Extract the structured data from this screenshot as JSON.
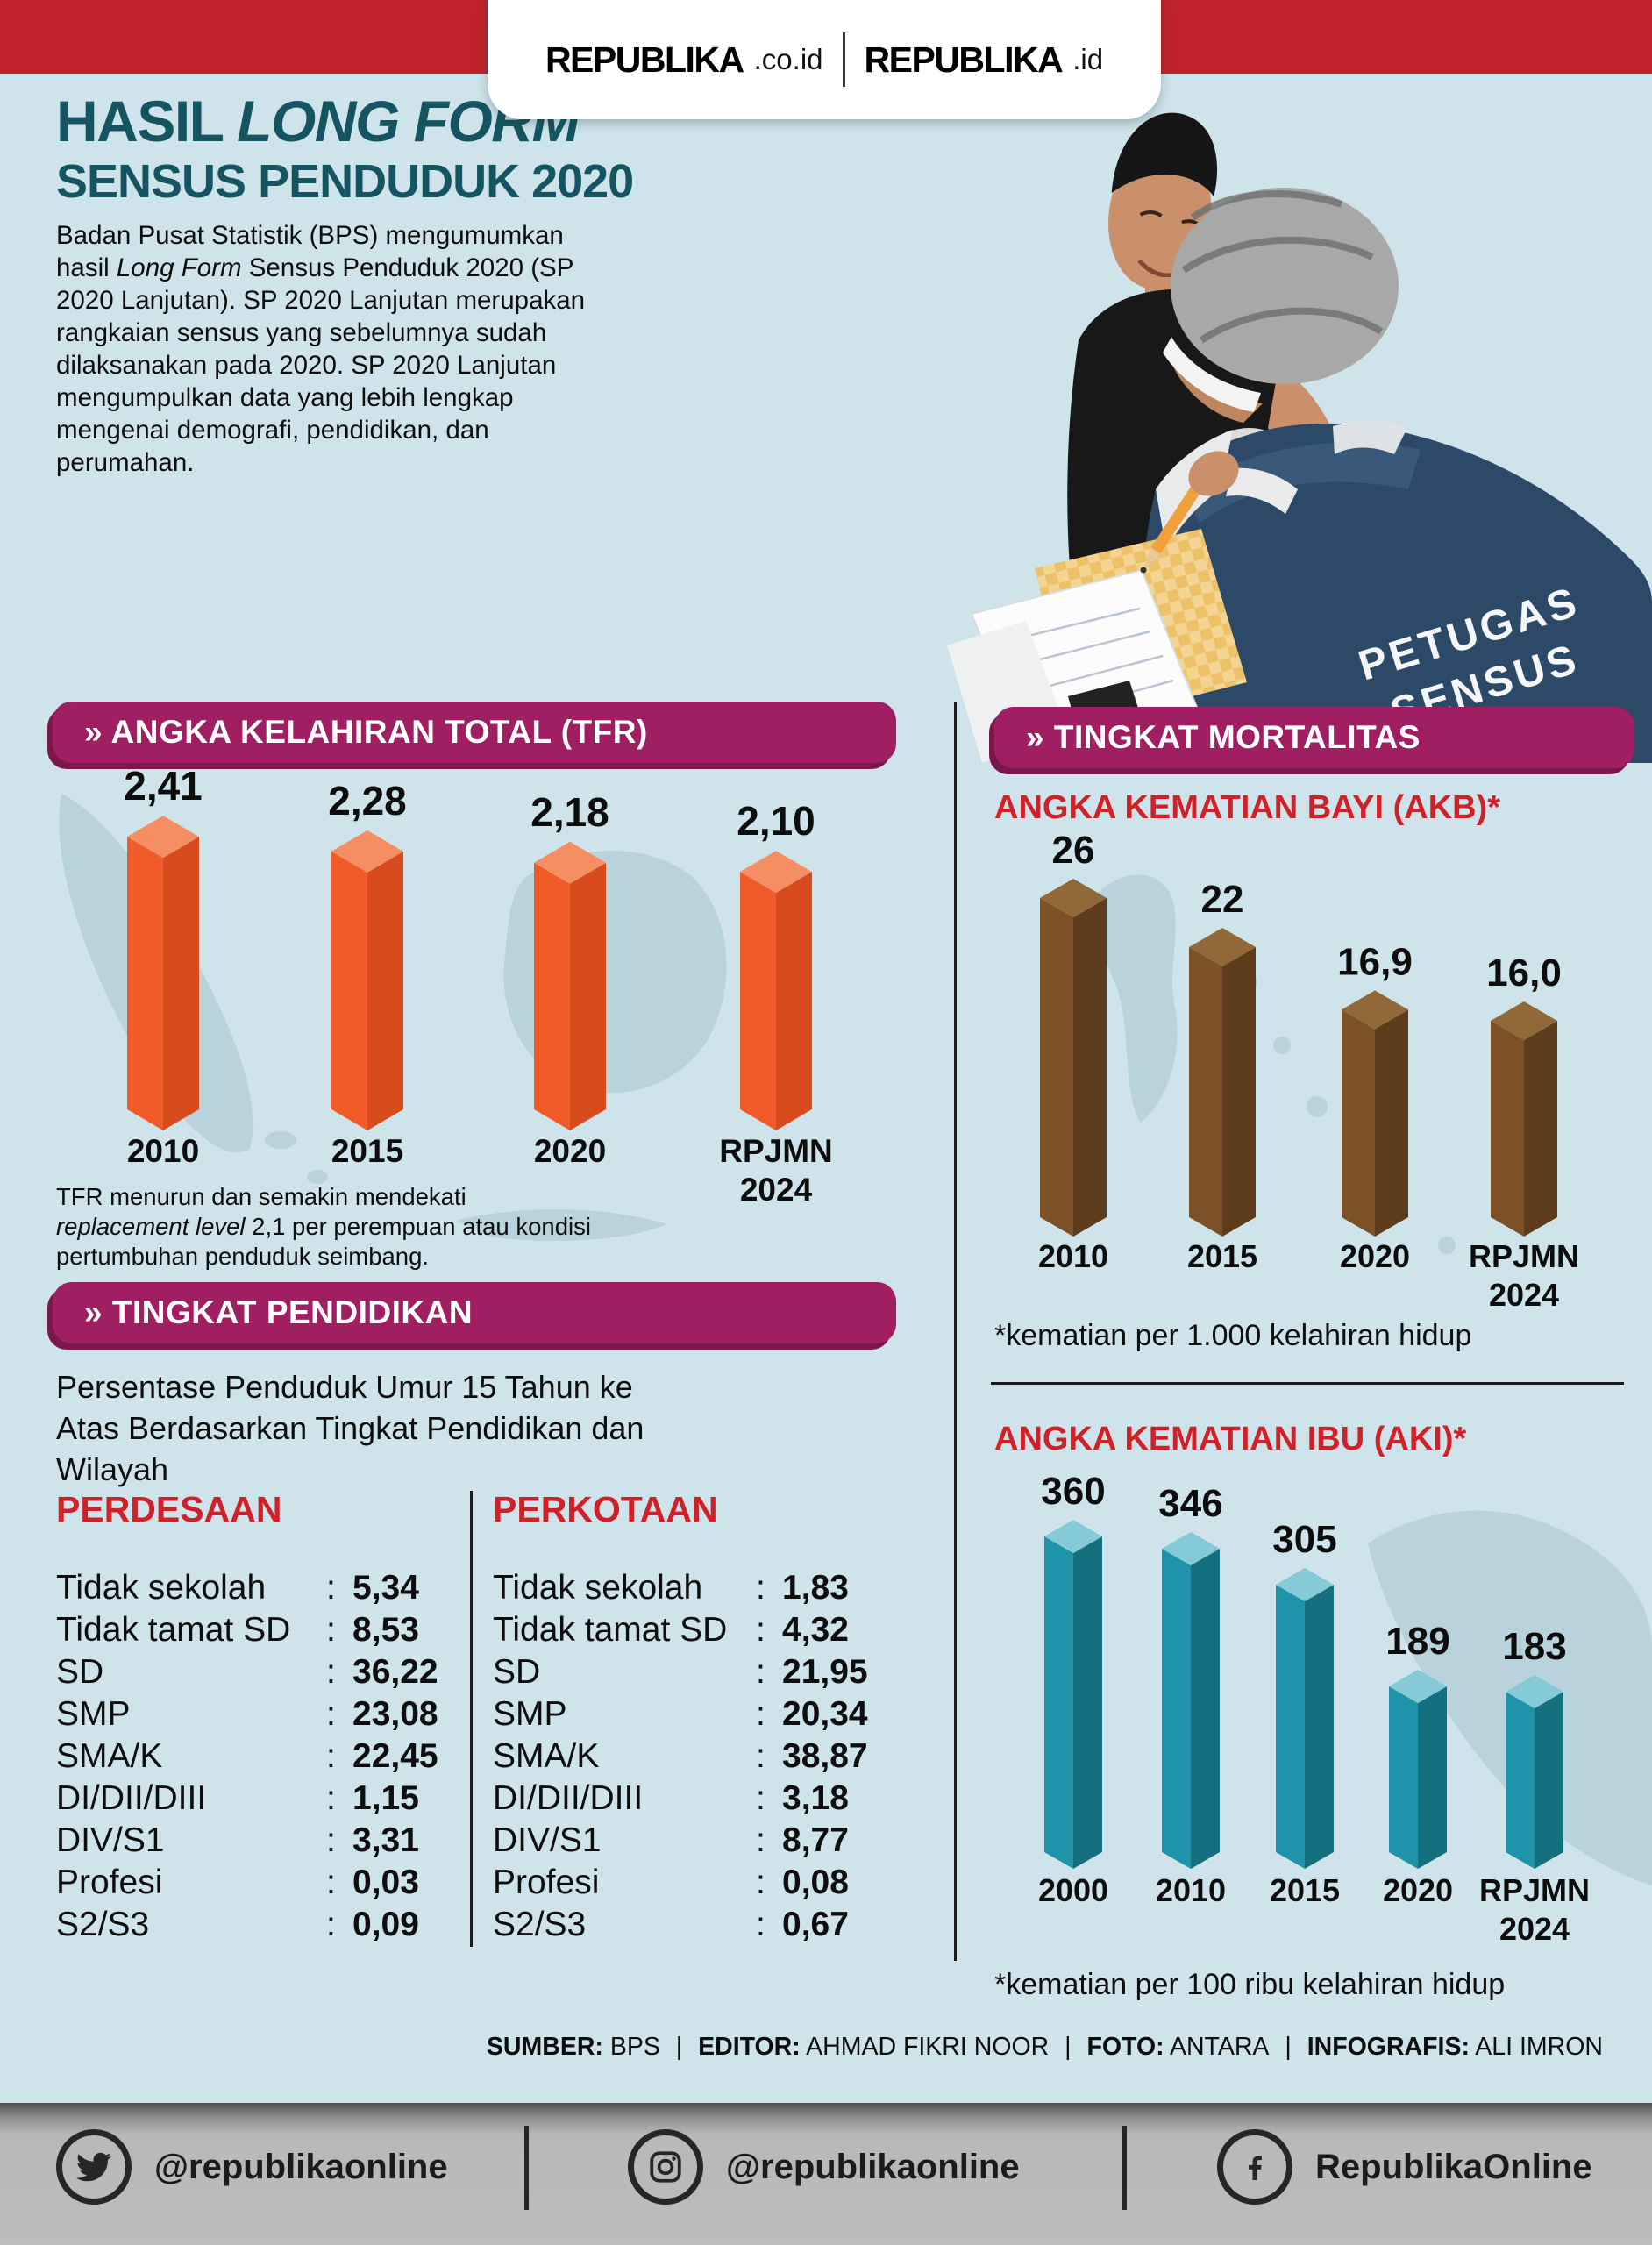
{
  "colors": {
    "background": "#cfe3ea",
    "map_silhouette": "#b8d3db",
    "masthead_bar": "#c0222b",
    "title_teal": "#155561",
    "accent_magenta": "#a01f63",
    "accent_red": "#d02028",
    "footer_gray": "#bcbdbe"
  },
  "masthead": {
    "logo_left": {
      "name": "REPUBLIKA",
      "suffix": ".co.id"
    },
    "logo_right": {
      "name": "REPUBLIKA",
      "suffix": ".id"
    }
  },
  "title": {
    "line1_prefix": "HASIL ",
    "line1_italic": "LONG FORM",
    "line2": "SENSUS PENDUDUK 2020"
  },
  "intro": {
    "seg1": "Badan Pusat Statistik (BPS) mengumumkan hasil ",
    "seg2_italic": "Long Form",
    "seg3": " Sensus Penduduk 2020 (SP 2020 Lanjutan). SP 2020 Lanjutan merupakan rangkaian sensus yang sebelumnya sudah dilaksanakan pada 2020. SP 2020 Lanjutan mengumpulkan data yang lebih lengkap mengenai demografi, pendidikan, dan perumahan."
  },
  "photo": {
    "vest_line1": "PETUGAS",
    "vest_line2": "SENSUS"
  },
  "sections": {
    "tfr_header": "» ANGKA KELAHIRAN TOTAL (TFR)",
    "tfr_note": {
      "seg1": "TFR menurun dan semakin mendekati ",
      "seg2_italic": "replacement level",
      "seg3": " 2,1 per perempuan atau kondisi pertumbuhan penduduk seimbang."
    },
    "mortalitas_header": "» TINGKAT MORTALITAS",
    "akb_title": "ANGKA KEMATIAN BAYI (AKB)*",
    "akb_note": "*kematian per 1.000 kelahiran hidup",
    "aki_title": "ANGKA KEMATIAN IBU (AKI)*",
    "aki_note": "*kematian per 100 ribu kelahiran hidup",
    "pendidikan_header": "» TINGKAT PENDIDIKAN",
    "pendidikan_subtitle": "Persentase Penduduk Umur 15 Tahun ke Atas Berdasarkan Tingkat Pendidikan dan Wilayah"
  },
  "education": {
    "perdesaan": {
      "title": "PERDESAAN",
      "rows": [
        {
          "label": "Tidak sekolah",
          "value": "5,34"
        },
        {
          "label": "Tidak tamat SD",
          "value": "8,53"
        },
        {
          "label": "SD",
          "value": "36,22"
        },
        {
          "label": "SMP",
          "value": "23,08"
        },
        {
          "label": "SMA/K",
          "value": "22,45"
        },
        {
          "label": "DI/DII/DIII",
          "value": "1,15"
        },
        {
          "label": "DIV/S1",
          "value": "3,31"
        },
        {
          "label": "Profesi",
          "value": "0,03"
        },
        {
          "label": "S2/S3",
          "value": "0,09"
        }
      ]
    },
    "perkotaan": {
      "title": "PERKOTAAN",
      "rows": [
        {
          "label": "Tidak sekolah",
          "value": "1,83"
        },
        {
          "label": "Tidak tamat SD",
          "value": "4,32"
        },
        {
          "label": "SD",
          "value": "21,95"
        },
        {
          "label": "SMP",
          "value": "20,34"
        },
        {
          "label": "SMA/K",
          "value": "38,87"
        },
        {
          "label": "DI/DII/DIII",
          "value": "3,18"
        },
        {
          "label": "DIV/S1",
          "value": "8,77"
        },
        {
          "label": "Profesi",
          "value": "0,08"
        },
        {
          "label": "S2/S3",
          "value": "0,67"
        }
      ]
    }
  },
  "chart_data": [
    {
      "id": "tfr",
      "type": "bar",
      "title": "ANGKA KELAHIRAN TOTAL (TFR)",
      "categories": [
        "2010",
        "2015",
        "2020",
        "RPJMN 2024"
      ],
      "values": [
        2.41,
        2.28,
        2.18,
        2.1
      ],
      "value_labels": [
        "2,41",
        "2,28",
        "2,18",
        "2,10"
      ],
      "ylim": [
        0,
        2.6
      ],
      "legend": "none",
      "colors": {
        "left": "#f15a29",
        "right": "#d84b1d",
        "top": "#f68e63"
      }
    },
    {
      "id": "akb",
      "type": "bar",
      "title": "ANGKA KEMATIAN BAYI (AKB)",
      "unit_note": "*kematian per 1.000 kelahiran hidup",
      "categories": [
        "2010",
        "2015",
        "2020",
        "RPJMN 2024"
      ],
      "values": [
        26,
        22,
        16.9,
        16.0
      ],
      "value_labels": [
        "26",
        "22",
        "16,9",
        "16,0"
      ],
      "ylim": [
        0,
        28
      ],
      "legend": "none",
      "colors": {
        "left": "#7c5128",
        "right": "#5e3d1e",
        "top": "#916939"
      }
    },
    {
      "id": "aki",
      "type": "bar",
      "title": "ANGKA KEMATIAN IBU (AKI)",
      "unit_note": "*kematian per 100 ribu kelahiran hidup",
      "categories": [
        "2000",
        "2010",
        "2015",
        "2020",
        "RPJMN 2024"
      ],
      "values": [
        360,
        346,
        305,
        189,
        183
      ],
      "value_labels": [
        "360",
        "346",
        "305",
        "189",
        "183"
      ],
      "ylim": [
        0,
        400
      ],
      "legend": "none",
      "colors": {
        "left": "#1e93aa",
        "right": "#14707f",
        "top": "#85cad7"
      }
    }
  ],
  "credits": {
    "separator": "|",
    "items": [
      {
        "label": "SUMBER:",
        "value": "BPS"
      },
      {
        "label": "EDITOR:",
        "value": "AHMAD FIKRI NOOR"
      },
      {
        "label": "FOTO:",
        "value": "ANTARA"
      },
      {
        "label": "INFOGRAFIS:",
        "value": "ALI IMRON"
      }
    ]
  },
  "footer": {
    "twitter": "@republikaonline",
    "instagram": "@republikaonline",
    "facebook": "RepublikaOnline"
  }
}
